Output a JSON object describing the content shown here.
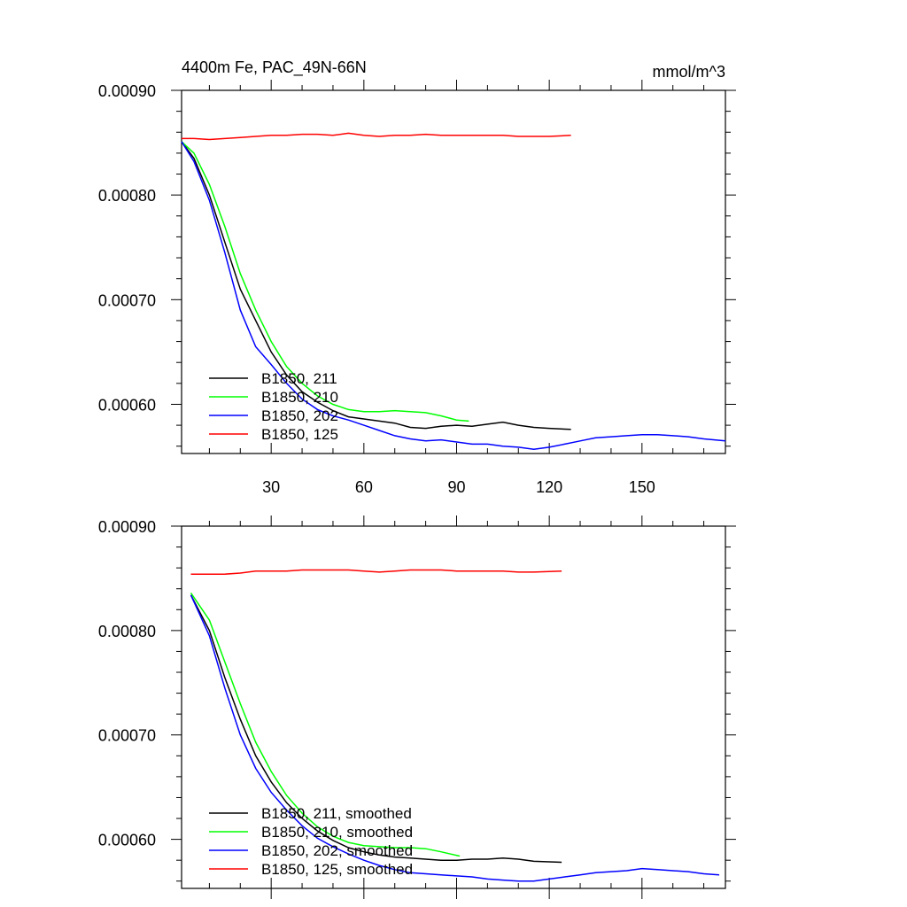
{
  "figure": {
    "title_left": "4400m Fe, PAC_49N-66N",
    "title_right": "mmol/m^3"
  },
  "chart_data": [
    {
      "type": "line",
      "title": "4400m Fe, PAC_49N-66N",
      "unit_label": "mmol/m^3",
      "xlim": [
        1,
        177
      ],
      "ylim": [
        0.000553,
        0.0009
      ],
      "x_ticks": [
        30,
        60,
        90,
        120,
        150
      ],
      "x_tick_labels": [
        "30",
        "60",
        "90",
        "120",
        "150"
      ],
      "y_ticks": [
        0.0009,
        0.0008,
        0.0007,
        0.0006
      ],
      "y_tick_labels": [
        "0.00090",
        "0.00080",
        "0.00070",
        "0.00060"
      ],
      "grid": false,
      "legend_position": "bottom-left",
      "series": [
        {
          "name": "B1850, 211",
          "color": "#000000",
          "points": [
            [
              1,
              0.000851
            ],
            [
              5,
              0.000835
            ],
            [
              10,
              0.0008
            ],
            [
              15,
              0.000755
            ],
            [
              20,
              0.00071
            ],
            [
              25,
              0.00068
            ],
            [
              30,
              0.00065
            ],
            [
              35,
              0.000628
            ],
            [
              40,
              0.000612
            ],
            [
              45,
              0.000602
            ],
            [
              50,
              0.000594
            ],
            [
              55,
              0.000588
            ],
            [
              60,
              0.000586
            ],
            [
              65,
              0.000584
            ],
            [
              70,
              0.000582
            ],
            [
              75,
              0.000578
            ],
            [
              80,
              0.000577
            ],
            [
              85,
              0.000579
            ],
            [
              90,
              0.00058
            ],
            [
              95,
              0.000579
            ],
            [
              100,
              0.000581
            ],
            [
              105,
              0.000583
            ],
            [
              110,
              0.00058
            ],
            [
              115,
              0.000578
            ],
            [
              120,
              0.000577
            ],
            [
              127,
              0.000576
            ]
          ]
        },
        {
          "name": "B1850, 210",
          "color": "#00ff00",
          "points": [
            [
              1,
              0.000851
            ],
            [
              5,
              0.00084
            ],
            [
              10,
              0.00081
            ],
            [
              15,
              0.00077
            ],
            [
              20,
              0.000725
            ],
            [
              25,
              0.00069
            ],
            [
              30,
              0.00066
            ],
            [
              35,
              0.000636
            ],
            [
              40,
              0.00062
            ],
            [
              45,
              0.000608
            ],
            [
              50,
              0.0006
            ],
            [
              55,
              0.000595
            ],
            [
              60,
              0.000593
            ],
            [
              65,
              0.000593
            ],
            [
              70,
              0.000594
            ],
            [
              75,
              0.000593
            ],
            [
              80,
              0.000592
            ],
            [
              85,
              0.000589
            ],
            [
              90,
              0.000585
            ],
            [
              94,
              0.000584
            ]
          ]
        },
        {
          "name": "B1850, 202",
          "color": "#0000ff",
          "points": [
            [
              1,
              0.000851
            ],
            [
              5,
              0.000832
            ],
            [
              10,
              0.000795
            ],
            [
              15,
              0.000745
            ],
            [
              20,
              0.00069
            ],
            [
              25,
              0.000655
            ],
            [
              30,
              0.000638
            ],
            [
              35,
              0.00062
            ],
            [
              40,
              0.000605
            ],
            [
              45,
              0.000595
            ],
            [
              50,
              0.000589
            ],
            [
              55,
              0.000585
            ],
            [
              60,
              0.00058
            ],
            [
              65,
              0.000575
            ],
            [
              70,
              0.00057
            ],
            [
              75,
              0.000567
            ],
            [
              80,
              0.000565
            ],
            [
              85,
              0.000566
            ],
            [
              90,
              0.000564
            ],
            [
              95,
              0.000562
            ],
            [
              100,
              0.000562
            ],
            [
              105,
              0.00056
            ],
            [
              110,
              0.000559
            ],
            [
              115,
              0.000557
            ],
            [
              120,
              0.000559
            ],
            [
              125,
              0.000562
            ],
            [
              130,
              0.000565
            ],
            [
              135,
              0.000568
            ],
            [
              140,
              0.000569
            ],
            [
              145,
              0.00057
            ],
            [
              150,
              0.000571
            ],
            [
              155,
              0.000571
            ],
            [
              160,
              0.00057
            ],
            [
              165,
              0.000569
            ],
            [
              170,
              0.000567
            ],
            [
              177,
              0.000565
            ]
          ]
        },
        {
          "name": "B1850, 125",
          "color": "#ff0000",
          "points": [
            [
              1,
              0.000854
            ],
            [
              5,
              0.000854
            ],
            [
              10,
              0.000853
            ],
            [
              15,
              0.000854
            ],
            [
              20,
              0.000855
            ],
            [
              25,
              0.000856
            ],
            [
              30,
              0.000857
            ],
            [
              35,
              0.000857
            ],
            [
              40,
              0.000858
            ],
            [
              45,
              0.000858
            ],
            [
              50,
              0.000857
            ],
            [
              55,
              0.000859
            ],
            [
              60,
              0.000857
            ],
            [
              65,
              0.000856
            ],
            [
              70,
              0.000857
            ],
            [
              75,
              0.000857
            ],
            [
              80,
              0.000858
            ],
            [
              85,
              0.000857
            ],
            [
              90,
              0.000857
            ],
            [
              95,
              0.000857
            ],
            [
              100,
              0.000857
            ],
            [
              105,
              0.000857
            ],
            [
              110,
              0.000856
            ],
            [
              115,
              0.000856
            ],
            [
              120,
              0.000856
            ],
            [
              127,
              0.000857
            ]
          ]
        }
      ]
    },
    {
      "type": "line",
      "xlim": [
        1,
        177
      ],
      "ylim": [
        0.000553,
        0.0009
      ],
      "x_ticks": [
        30,
        60,
        90,
        120,
        150
      ],
      "x_tick_labels": [],
      "y_ticks": [
        0.0009,
        0.0008,
        0.0007,
        0.0006
      ],
      "y_tick_labels": [
        "0.00090",
        "0.00080",
        "0.00070",
        "0.00060"
      ],
      "grid": false,
      "legend_position": "bottom-left",
      "series": [
        {
          "name": "B1850, 211, smoothed",
          "color": "#000000",
          "points": [
            [
              4,
              0.000834
            ],
            [
              10,
              0.0008
            ],
            [
              15,
              0.000755
            ],
            [
              20,
              0.000715
            ],
            [
              25,
              0.00068
            ],
            [
              30,
              0.000655
            ],
            [
              35,
              0.000635
            ],
            [
              40,
              0.00062
            ],
            [
              45,
              0.000608
            ],
            [
              50,
              0.000599
            ],
            [
              55,
              0.000592
            ],
            [
              60,
              0.000588
            ],
            [
              65,
              0.000585
            ],
            [
              70,
              0.000583
            ],
            [
              75,
              0.000582
            ],
            [
              80,
              0.000581
            ],
            [
              85,
              0.00058
            ],
            [
              90,
              0.00058
            ],
            [
              95,
              0.000581
            ],
            [
              100,
              0.000581
            ],
            [
              105,
              0.000582
            ],
            [
              110,
              0.000581
            ],
            [
              115,
              0.000579
            ],
            [
              124,
              0.000578
            ]
          ]
        },
        {
          "name": "B1850, 210, smoothed",
          "color": "#00ff00",
          "points": [
            [
              4,
              0.000836
            ],
            [
              10,
              0.00081
            ],
            [
              15,
              0.00077
            ],
            [
              20,
              0.00073
            ],
            [
              25,
              0.000693
            ],
            [
              30,
              0.000665
            ],
            [
              35,
              0.000642
            ],
            [
              40,
              0.000625
            ],
            [
              45,
              0.000612
            ],
            [
              50,
              0.000603
            ],
            [
              55,
              0.000597
            ],
            [
              60,
              0.000594
            ],
            [
              65,
              0.000593
            ],
            [
              70,
              0.000592
            ],
            [
              75,
              0.000592
            ],
            [
              80,
              0.000591
            ],
            [
              85,
              0.000588
            ],
            [
              91,
              0.000584
            ]
          ]
        },
        {
          "name": "B1850, 202, smoothed",
          "color": "#0000ff",
          "points": [
            [
              4,
              0.000834
            ],
            [
              10,
              0.000795
            ],
            [
              15,
              0.000745
            ],
            [
              20,
              0.0007
            ],
            [
              25,
              0.000668
            ],
            [
              30,
              0.000645
            ],
            [
              35,
              0.000628
            ],
            [
              40,
              0.000613
            ],
            [
              45,
              0.000601
            ],
            [
              50,
              0.000593
            ],
            [
              55,
              0.000586
            ],
            [
              60,
              0.00058
            ],
            [
              65,
              0.000575
            ],
            [
              70,
              0.000571
            ],
            [
              75,
              0.000568
            ],
            [
              80,
              0.000567
            ],
            [
              85,
              0.000566
            ],
            [
              90,
              0.000565
            ],
            [
              95,
              0.000564
            ],
            [
              100,
              0.000562
            ],
            [
              105,
              0.000561
            ],
            [
              110,
              0.00056
            ],
            [
              115,
              0.00056
            ],
            [
              120,
              0.000562
            ],
            [
              125,
              0.000564
            ],
            [
              130,
              0.000566
            ],
            [
              135,
              0.000568
            ],
            [
              140,
              0.000569
            ],
            [
              145,
              0.00057
            ],
            [
              150,
              0.000572
            ],
            [
              155,
              0.000571
            ],
            [
              160,
              0.00057
            ],
            [
              165,
              0.000569
            ],
            [
              170,
              0.000567
            ],
            [
              175,
              0.000566
            ]
          ]
        },
        {
          "name": "B1850, 125, smoothed",
          "color": "#ff0000",
          "points": [
            [
              4,
              0.000854
            ],
            [
              10,
              0.000854
            ],
            [
              15,
              0.000854
            ],
            [
              20,
              0.000855
            ],
            [
              25,
              0.000857
            ],
            [
              30,
              0.000857
            ],
            [
              35,
              0.000857
            ],
            [
              40,
              0.000858
            ],
            [
              45,
              0.000858
            ],
            [
              50,
              0.000858
            ],
            [
              55,
              0.000858
            ],
            [
              60,
              0.000857
            ],
            [
              65,
              0.000856
            ],
            [
              70,
              0.000857
            ],
            [
              75,
              0.000858
            ],
            [
              80,
              0.000858
            ],
            [
              85,
              0.000858
            ],
            [
              90,
              0.000857
            ],
            [
              95,
              0.000857
            ],
            [
              100,
              0.000857
            ],
            [
              105,
              0.000857
            ],
            [
              110,
              0.000856
            ],
            [
              115,
              0.000856
            ],
            [
              124,
              0.000857
            ]
          ]
        }
      ]
    }
  ]
}
